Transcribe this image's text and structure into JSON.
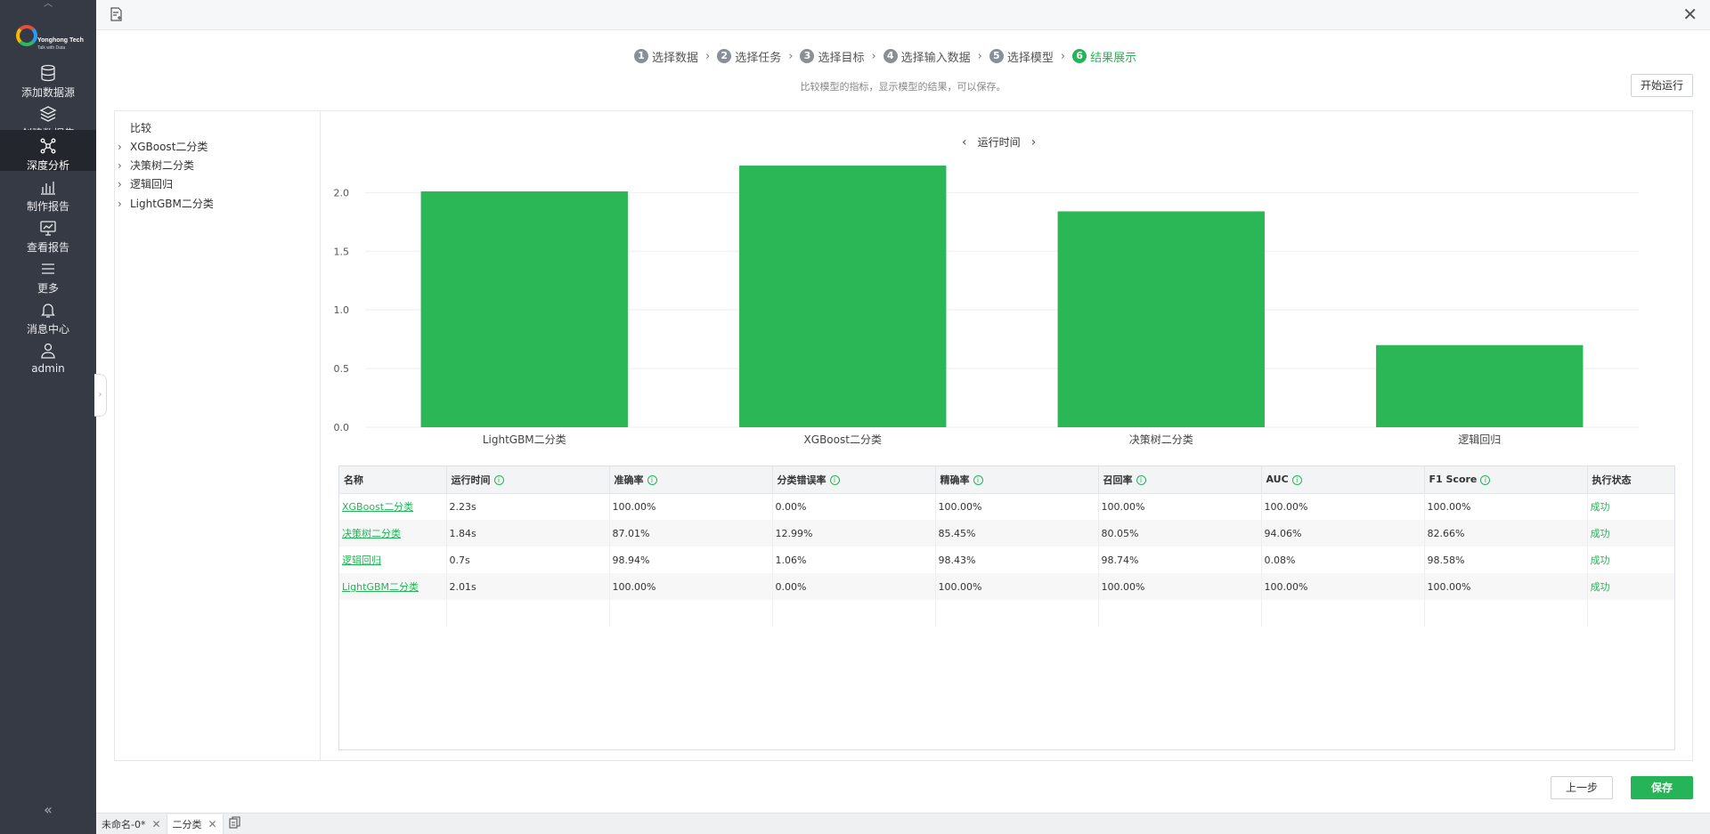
{
  "sidebar": {
    "logo": {
      "name": "Yonghong Tech",
      "tagline": "Talk with Data"
    },
    "items": [
      {
        "label": "添加数据源",
        "icon": "database-icon"
      },
      {
        "label": "创建数据集",
        "icon": "layers-icon"
      },
      {
        "label": "深度分析",
        "icon": "network-icon",
        "active": true
      },
      {
        "label": "制作报告",
        "icon": "bar-chart-icon"
      },
      {
        "label": "查看报告",
        "icon": "line-chart-monitor-icon"
      },
      {
        "label": "更多",
        "icon": "menu-icon"
      },
      {
        "label": "消息中心",
        "icon": "bell-icon"
      },
      {
        "label": "admin",
        "icon": "user-icon"
      }
    ],
    "collapse": "«"
  },
  "steps": [
    {
      "num": "1",
      "label": "选择数据"
    },
    {
      "num": "2",
      "label": "选择任务"
    },
    {
      "num": "3",
      "label": "选择目标"
    },
    {
      "num": "4",
      "label": "选择输入数据"
    },
    {
      "num": "5",
      "label": "选择模型"
    },
    {
      "num": "6",
      "label": "结果展示",
      "active": true
    }
  ],
  "subtitle": "比较模型的指标，显示模型的结果，可以保存。",
  "buttons": {
    "run": "开始运行",
    "prev": "上一步",
    "save": "保存"
  },
  "tree": {
    "title": "比较",
    "items": [
      "XGBoost二分类",
      "决策树二分类",
      "逻辑回归",
      "LightGBM二分类"
    ]
  },
  "chart_data": {
    "type": "bar",
    "title": "运行时间",
    "categories": [
      "LightGBM二分类",
      "XGBoost二分类",
      "决策树二分类",
      "逻辑回归"
    ],
    "values": [
      2.01,
      2.23,
      1.84,
      0.7
    ],
    "ylim": [
      0,
      2.2
    ],
    "yticks": [
      "0.0",
      "0.5",
      "1.0",
      "1.5",
      "2.0"
    ],
    "grid": true,
    "color": "#2bb755"
  },
  "table": {
    "columns": [
      "名称",
      "运行时间",
      "准确率",
      "分类错误率",
      "精确率",
      "召回率",
      "AUC",
      "F1 Score",
      "执行状态"
    ],
    "rows": [
      [
        "XGBoost二分类",
        "2.23s",
        "100.00%",
        "0.00%",
        "100.00%",
        "100.00%",
        "100.00%",
        "100.00%",
        "成功"
      ],
      [
        "决策树二分类",
        "1.84s",
        "87.01%",
        "12.99%",
        "85.45%",
        "80.05%",
        "94.06%",
        "82.66%",
        "成功"
      ],
      [
        "逻辑回归",
        "0.7s",
        "98.94%",
        "1.06%",
        "98.43%",
        "98.74%",
        "0.08%",
        "98.58%",
        "成功"
      ],
      [
        "LightGBM二分类",
        "2.01s",
        "100.00%",
        "0.00%",
        "100.00%",
        "100.00%",
        "100.00%",
        "100.00%",
        "成功"
      ]
    ]
  },
  "tabs": [
    {
      "label": "未命名-0*"
    },
    {
      "label": "二分类",
      "active": true
    }
  ],
  "colors": {
    "accent": "#25b457",
    "sidebar": "#363a44"
  }
}
